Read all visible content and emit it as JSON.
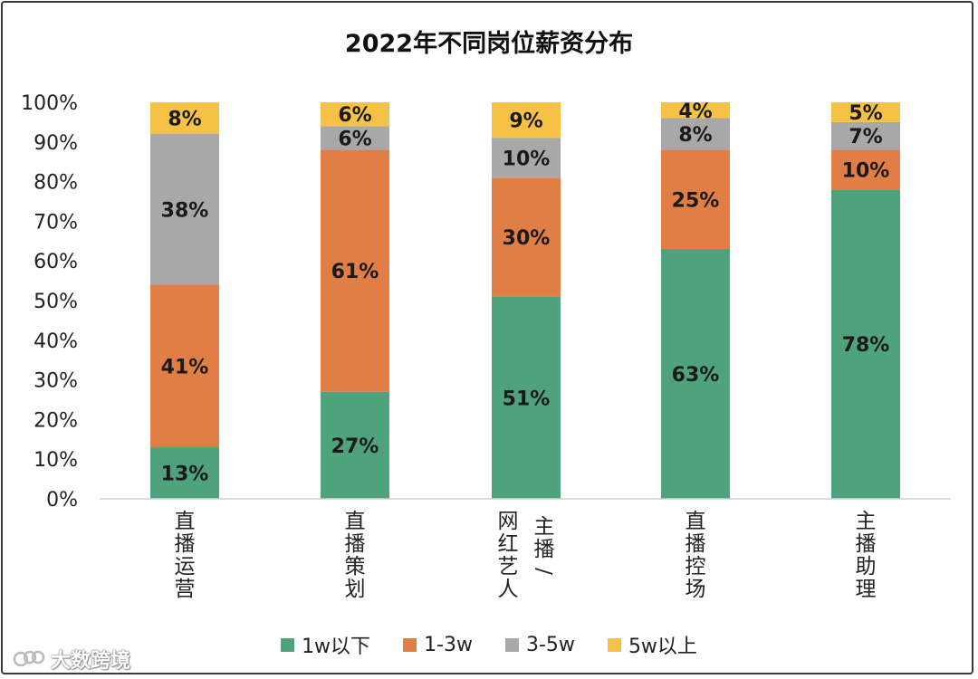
{
  "title": "2022年不同岗位薪资分布",
  "chart_data": {
    "type": "bar",
    "stacked": true,
    "percent": true,
    "title": "2022年不同岗位薪资分布",
    "categories": [
      "直播运营",
      "直播策划",
      "网红艺人/主播",
      "直播控场",
      "主播助理"
    ],
    "category_lines": [
      [
        "直播运营"
      ],
      [
        "直播策划"
      ],
      [
        "网红艺人",
        "主播/"
      ],
      [
        "直播控场"
      ],
      [
        "主播助理"
      ]
    ],
    "series": [
      {
        "name": "1w以下",
        "color": "#4ea27c",
        "values": [
          13,
          27,
          51,
          63,
          78
        ]
      },
      {
        "name": "1-3w",
        "color": "#e07e45",
        "values": [
          41,
          61,
          30,
          25,
          10
        ]
      },
      {
        "name": "3-5w",
        "color": "#a8a8a8",
        "values": [
          38,
          6,
          10,
          8,
          7
        ]
      },
      {
        "name": "5w以上",
        "color": "#f5c245",
        "values": [
          8,
          6,
          9,
          4,
          5
        ]
      }
    ],
    "data_labels": [
      [
        "13%",
        "27%",
        "51%",
        "63%",
        "78%"
      ],
      [
        "41%",
        "61%",
        "30%",
        "25%",
        "10%"
      ],
      [
        "38%",
        "6%",
        "10%",
        "8%",
        "7%"
      ],
      [
        "8%",
        "6%",
        "9%",
        "4%",
        "5%"
      ]
    ],
    "ylim": [
      0,
      100
    ],
    "yticks": [
      "0%",
      "10%",
      "20%",
      "30%",
      "40%",
      "50%",
      "60%",
      "70%",
      "80%",
      "90%",
      "100%"
    ],
    "grid": false,
    "legend_position": "bottom"
  },
  "legend": [
    {
      "label": "1w以下",
      "color": "#4ea27c"
    },
    {
      "label": "1-3w",
      "color": "#e07e45"
    },
    {
      "label": "3-5w",
      "color": "#a8a8a8"
    },
    {
      "label": "5w以上",
      "color": "#f5c245"
    }
  ],
  "watermark": {
    "text": "大数跨境"
  }
}
